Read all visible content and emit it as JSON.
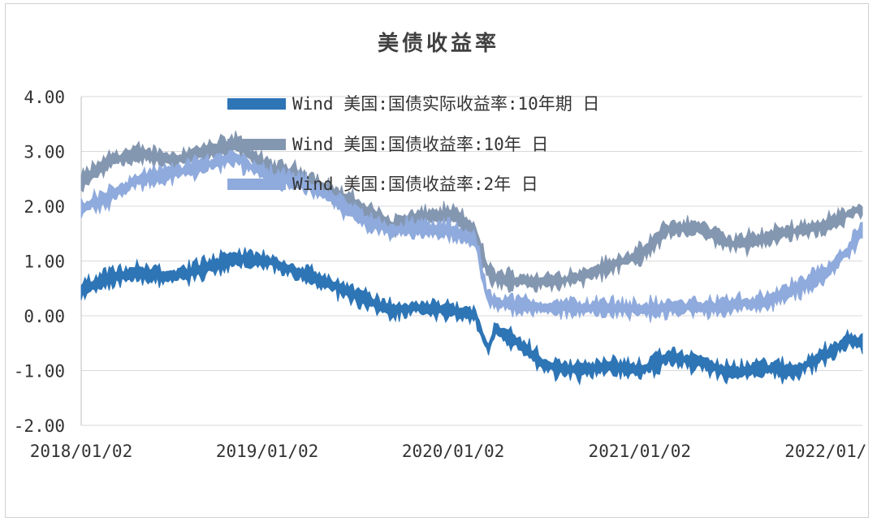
{
  "chart_data": {
    "type": "area",
    "title": "美债收益率",
    "xlabel": "",
    "ylabel": "",
    "ylim": [
      -2,
      4
    ],
    "yticks": [
      "4.00",
      "3.00",
      "2.00",
      "1.00",
      "0.00",
      "-1.00",
      "-2.00"
    ],
    "xticks": [
      "2018/01/02",
      "2019/01/02",
      "2020/01/02",
      "2021/01/02",
      "2022/01/"
    ],
    "grid": "horizontal",
    "legend_position": "top-center",
    "x": [
      "2018/01/02",
      "2018/03/01",
      "2018/05/01",
      "2018/07/01",
      "2018/09/01",
      "2018/11/01",
      "2019/01/02",
      "2019/03/01",
      "2019/05/01",
      "2019/07/01",
      "2019/09/01",
      "2019/11/01",
      "2020/01/02",
      "2020/02/15",
      "2020/03/10",
      "2020/03/25",
      "2020/05/01",
      "2020/07/01",
      "2020/09/01",
      "2020/11/01",
      "2021/01/02",
      "2021/03/01",
      "2021/05/01",
      "2021/07/01",
      "2021/09/01",
      "2021/11/01",
      "2022/01/02",
      "2022/02/15",
      "2022/03/15"
    ],
    "series": [
      {
        "name": "Wind 美国:国债实际收益率:10年期 日",
        "color": "#2e75b6",
        "values": [
          0.45,
          0.7,
          0.78,
          0.72,
          0.85,
          1.05,
          1.0,
          0.8,
          0.6,
          0.35,
          0.1,
          0.15,
          0.1,
          0.0,
          -0.6,
          -0.25,
          -0.45,
          -0.9,
          -1.0,
          -0.9,
          -1.0,
          -0.75,
          -0.85,
          -1.05,
          -0.95,
          -1.0,
          -0.7,
          -0.45,
          -0.5
        ]
      },
      {
        "name": "Wind 美国:国债收益率:10年 日",
        "color": "#8497b0",
        "values": [
          2.45,
          2.85,
          2.95,
          2.85,
          3.0,
          3.15,
          2.7,
          2.6,
          2.3,
          2.0,
          1.65,
          1.8,
          1.85,
          1.55,
          0.8,
          0.7,
          0.65,
          0.6,
          0.7,
          0.9,
          1.1,
          1.6,
          1.6,
          1.3,
          1.4,
          1.55,
          1.65,
          1.85,
          1.95
        ]
      },
      {
        "name": "Wind 美国:国债收益率:2年 日",
        "color": "#8faadc",
        "values": [
          1.95,
          2.2,
          2.5,
          2.6,
          2.75,
          2.9,
          2.55,
          2.45,
          2.2,
          1.8,
          1.55,
          1.6,
          1.55,
          1.35,
          0.3,
          0.25,
          0.2,
          0.15,
          0.15,
          0.15,
          0.12,
          0.15,
          0.16,
          0.2,
          0.23,
          0.5,
          0.75,
          1.2,
          1.55
        ]
      }
    ]
  }
}
